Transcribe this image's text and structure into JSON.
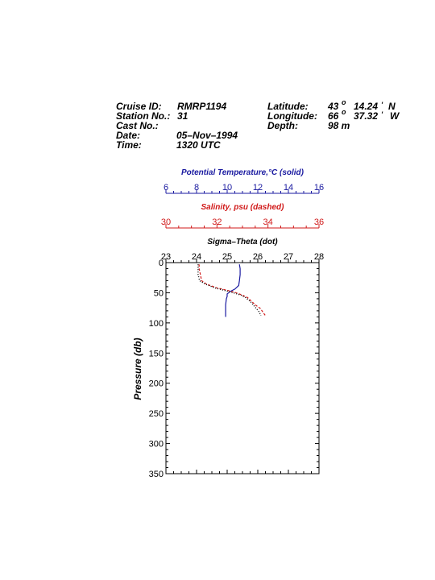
{
  "header": {
    "cruise_label": "Cruise ID:",
    "cruise_value": "RMRP1194",
    "station_label": "Station No.:",
    "station_value": "31",
    "cast_label": "Cast No.:",
    "cast_value": "",
    "date_label": "Date:",
    "date_value": "05–Nov–1994",
    "time_label": "Time:",
    "time_value": "1320 UTC",
    "lat_label": "Latitude:",
    "lat_deg": "43",
    "lat_min": "14.24",
    "lat_hem": "N",
    "lon_label": "Longitude:",
    "lon_deg": "66",
    "lon_min": "37.32",
    "lon_hem": "W",
    "depth_label": "Depth:",
    "depth_value": "98 m"
  },
  "colors": {
    "temperature": "#1a1aa0",
    "salinity": "#d01818",
    "axis": "#000000"
  },
  "chart_data": {
    "type": "line",
    "ylabel": "Pressure (db)",
    "ylim": [
      0,
      350
    ],
    "y_inverted": true,
    "y_ticks": [
      0,
      50,
      100,
      150,
      200,
      250,
      300,
      350
    ],
    "axes": [
      {
        "key": "temperature",
        "title": "Potential Temperature,°C (solid)",
        "range": [
          6,
          16
        ],
        "ticks": [
          6,
          8,
          10,
          12,
          14,
          16
        ],
        "color": "#1a1aa0"
      },
      {
        "key": "salinity",
        "title": "Salinity, psu  (dashed)",
        "range": [
          30,
          36
        ],
        "ticks": [
          30,
          32,
          34,
          36
        ],
        "color": "#d01818"
      },
      {
        "key": "sigma",
        "title": "Sigma–Theta (dot)",
        "range": [
          23,
          28
        ],
        "ticks": [
          23,
          24,
          25,
          26,
          27,
          28
        ],
        "color": "#000000"
      }
    ],
    "series": [
      {
        "key": "temperature",
        "style": "solid",
        "pressure": [
          3,
          10,
          20,
          30,
          38,
          44,
          48,
          52,
          56,
          60,
          70,
          80,
          90
        ],
        "values": [
          10.8,
          10.85,
          10.85,
          10.8,
          10.75,
          10.5,
          10.2,
          10.0,
          10.0,
          9.95,
          9.9,
          9.9,
          9.9
        ]
      },
      {
        "key": "salinity",
        "style": "dashed",
        "pressure": [
          3,
          10,
          20,
          30,
          36,
          42,
          46,
          50,
          54,
          58,
          64,
          70,
          76,
          82,
          88
        ],
        "values": [
          31.3,
          31.3,
          31.35,
          31.4,
          31.6,
          32.0,
          32.4,
          32.75,
          33.0,
          33.2,
          33.35,
          33.5,
          33.7,
          33.8,
          33.9
        ]
      },
      {
        "key": "sigma",
        "style": "dot",
        "pressure": [
          3,
          10,
          20,
          30,
          36,
          42,
          46,
          50,
          54,
          58,
          64,
          70,
          76,
          82,
          88
        ],
        "values": [
          24.05,
          24.05,
          24.05,
          24.1,
          24.3,
          24.6,
          24.9,
          25.2,
          25.45,
          25.6,
          25.75,
          25.85,
          25.95,
          26.05,
          26.1
        ]
      }
    ]
  }
}
